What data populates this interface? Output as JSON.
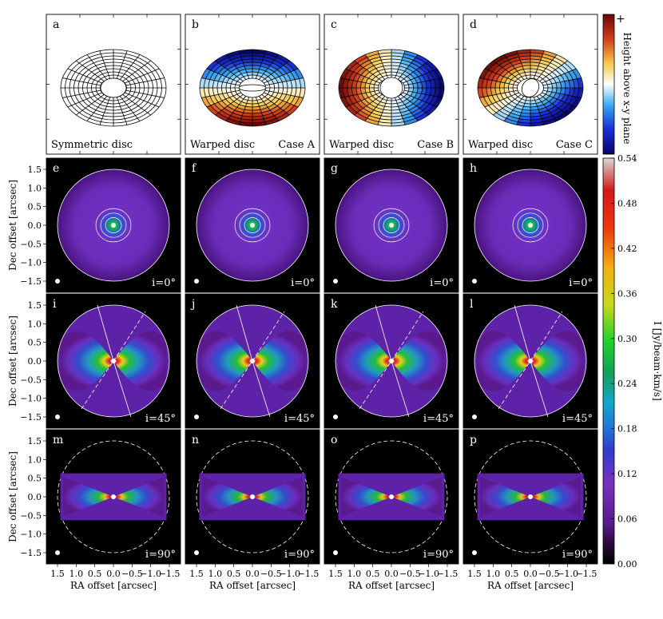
{
  "chart_data": {
    "type": "heatmap",
    "top_row": {
      "panels": [
        {
          "letter": "a",
          "left_caption": "Symmetric disc",
          "right_caption": "",
          "case": "sym"
        },
        {
          "letter": "b",
          "left_caption": "Warped disc",
          "right_caption": "Case A",
          "case": "A"
        },
        {
          "letter": "c",
          "left_caption": "Warped disc",
          "right_caption": "Case B",
          "case": "B"
        },
        {
          "letter": "d",
          "left_caption": "Warped disc",
          "right_caption": "Case C",
          "case": "C"
        }
      ],
      "colorbar": {
        "label": "Height above x-y plane",
        "top_label": "+",
        "bottom_label": "−"
      }
    },
    "map_rows": [
      {
        "inclination_label": "i=0°",
        "letters": [
          "e",
          "f",
          "g",
          "h"
        ]
      },
      {
        "inclination_label": "i=45°",
        "letters": [
          "i",
          "j",
          "k",
          "l"
        ]
      },
      {
        "inclination_label": "i=90°",
        "letters": [
          "m",
          "n",
          "o",
          "p"
        ]
      }
    ],
    "xlabel": "RA offset [arcsec]",
    "ylabel": "Dec offset [arcsec]",
    "xticks": [
      "1.5",
      "1.0",
      "0.5",
      "0.0",
      "−0.5",
      "−1.0",
      "−1.5"
    ],
    "yticks": [
      "1.5",
      "1.0",
      "0.5",
      "0.0",
      "−0.5",
      "−1.0",
      "−1.5"
    ],
    "xlim": [
      1.8,
      -1.8
    ],
    "ylim": [
      -1.8,
      1.8
    ],
    "colorbar": {
      "label": "I [Jy/beam·km/s]",
      "min": 0.0,
      "max": 0.54,
      "ticks": [
        "0.54",
        "0.48",
        "0.42",
        "0.36",
        "0.30",
        "0.24",
        "0.18",
        "0.12",
        "0.06",
        "0.00"
      ]
    },
    "colors": {
      "background": "#000000",
      "emission_low": "#5a1a8c",
      "emission_mid": "#1f9f3a",
      "emission_high": "#e8141c",
      "contours": "#ffffff"
    }
  }
}
